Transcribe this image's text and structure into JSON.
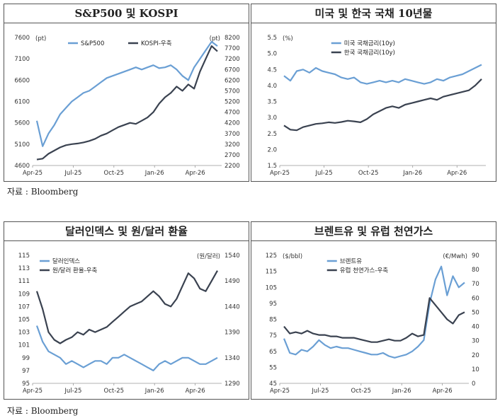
{
  "source_top": "자료 : Bloomberg",
  "source_bottom": "자료 : Bloomberg",
  "chart_data": [
    {
      "id": "spx-kospi",
      "type": "line",
      "title": "S&P500 및 KOSPI",
      "x_ticks": [
        "Apr-25",
        "Jul-25",
        "Oct-25",
        "Jan-26",
        "Apr-26"
      ],
      "left_unit": "(pt)",
      "right_unit": "(pt)",
      "ylim_left": [
        4600,
        7600
      ],
      "yticks_left": [
        4600,
        5100,
        5600,
        6100,
        6600,
        7100,
        7600
      ],
      "ylim_right": [
        2200,
        8200
      ],
      "yticks_right": [
        2200,
        2700,
        3200,
        3700,
        4200,
        4700,
        5200,
        5700,
        6200,
        6700,
        7200,
        7700,
        8200
      ],
      "legend_position": "top",
      "series": [
        {
          "name": "S&P500",
          "axis": "left",
          "color": "#6a9fd4",
          "values": [
            5650,
            5050,
            5350,
            5550,
            5800,
            5950,
            6100,
            6200,
            6300,
            6350,
            6450,
            6550,
            6650,
            6700,
            6750,
            6800,
            6850,
            6900,
            6850,
            6900,
            6950,
            6880,
            6900,
            6950,
            6850,
            6700,
            6600,
            6900,
            7100,
            7300,
            7500,
            7400
          ]
        },
        {
          "name": "KOSPI-우축",
          "axis": "right",
          "color": "#3a4250",
          "values": [
            2480,
            2520,
            2750,
            2900,
            3050,
            3150,
            3200,
            3230,
            3280,
            3350,
            3450,
            3600,
            3700,
            3850,
            4000,
            4100,
            4200,
            4150,
            4300,
            4450,
            4700,
            5100,
            5400,
            5600,
            5900,
            5700,
            6000,
            5800,
            6600,
            7200,
            7800,
            7550
          ]
        }
      ]
    },
    {
      "id": "us-kr-10y",
      "type": "line",
      "title": "미국 및 한국 국채 10년물",
      "x_ticks": [
        "Apr-25",
        "Jul-25",
        "Oct-25",
        "Jan-26",
        "Apr-26"
      ],
      "left_unit": "(%)",
      "ylim_left": [
        1.5,
        5.5
      ],
      "yticks_left": [
        1.5,
        2.0,
        2.5,
        3.0,
        3.5,
        4.0,
        4.5,
        5.0,
        5.5
      ],
      "legend_position": "top",
      "series": [
        {
          "name": "미국 국채금리(10y)",
          "axis": "left",
          "color": "#6a9fd4",
          "values": [
            4.3,
            4.15,
            4.45,
            4.5,
            4.4,
            4.55,
            4.45,
            4.4,
            4.35,
            4.25,
            4.2,
            4.25,
            4.1,
            4.05,
            4.1,
            4.15,
            4.1,
            4.15,
            4.1,
            4.2,
            4.15,
            4.1,
            4.05,
            4.1,
            4.2,
            4.15,
            4.25,
            4.3,
            4.35,
            4.45,
            4.55,
            4.65
          ]
        },
        {
          "name": "한국 국채금리(10y)",
          "axis": "left",
          "color": "#3a4250",
          "values": [
            2.75,
            2.62,
            2.6,
            2.7,
            2.75,
            2.8,
            2.82,
            2.85,
            2.83,
            2.86,
            2.9,
            2.88,
            2.85,
            2.95,
            3.1,
            3.2,
            3.3,
            3.35,
            3.3,
            3.4,
            3.45,
            3.5,
            3.55,
            3.6,
            3.55,
            3.65,
            3.7,
            3.75,
            3.8,
            3.85,
            4.0,
            4.2
          ]
        }
      ]
    },
    {
      "id": "dxy-krw",
      "type": "line",
      "title": "달러인덱스 및 원/달러 환율",
      "x_ticks": [
        "Apr-25",
        "Jul-25",
        "Oct-25",
        "Jan-26",
        "Apr-26"
      ],
      "right_unit": "(원/달러)",
      "ylim_left": [
        95,
        115
      ],
      "yticks_left": [
        95,
        97,
        99,
        101,
        103,
        105,
        107,
        109,
        111,
        113,
        115
      ],
      "ylim_right": [
        1290,
        1540
      ],
      "yticks_right": [
        1290,
        1340,
        1390,
        1440,
        1490,
        1540
      ],
      "legend_position": "top-left",
      "series": [
        {
          "name": "달러인덱스",
          "axis": "left",
          "color": "#6a9fd4",
          "values": [
            104,
            101.5,
            100,
            99.5,
            99,
            98,
            98.5,
            98,
            97.5,
            98,
            98.5,
            98.5,
            98,
            99,
            99,
            99.5,
            99,
            98.5,
            98,
            97.5,
            97,
            98,
            98.5,
            98,
            98.5,
            99,
            99,
            98.5,
            98,
            98,
            98.5,
            99
          ]
        },
        {
          "name": "원/달러 환율-우축",
          "axis": "right",
          "color": "#3a4250",
          "values": [
            1470,
            1435,
            1390,
            1375,
            1368,
            1375,
            1380,
            1390,
            1385,
            1395,
            1390,
            1395,
            1400,
            1410,
            1420,
            1430,
            1440,
            1445,
            1450,
            1460,
            1470,
            1460,
            1445,
            1440,
            1455,
            1480,
            1505,
            1495,
            1475,
            1470,
            1490,
            1510
          ]
        }
      ]
    },
    {
      "id": "brent-ttf",
      "type": "line",
      "title": "브렌트유 및 유럽 천연가스",
      "x_ticks": [
        "Apr-25",
        "Jul-25",
        "Oct-25",
        "Jan-26",
        "Apr-26"
      ],
      "left_unit": "($/bbl)",
      "right_unit": "(€/Mwh)",
      "ylim_left": [
        45,
        125
      ],
      "yticks_left": [
        45,
        55,
        65,
        75,
        85,
        95,
        105,
        115,
        125
      ],
      "ylim_right": [
        0,
        90
      ],
      "yticks_right": [
        0,
        10,
        20,
        30,
        40,
        50,
        60,
        70,
        80,
        90
      ],
      "legend_position": "top",
      "series": [
        {
          "name": "브렌트유",
          "axis": "left",
          "color": "#6a9fd4",
          "values": [
            73,
            64,
            63,
            66,
            65,
            68,
            72,
            69,
            67,
            68,
            67,
            67,
            66,
            65,
            64,
            63,
            63,
            64,
            62,
            61,
            62,
            63,
            65,
            68,
            72,
            95,
            110,
            118,
            100,
            112,
            105,
            108
          ]
        },
        {
          "name": "유럽 천연가스-우축",
          "axis": "right",
          "color": "#3a4250",
          "values": [
            40,
            35,
            36,
            35,
            37,
            35,
            34,
            34,
            33,
            33,
            32,
            32,
            32,
            31,
            30,
            29,
            29,
            30,
            31,
            30,
            30,
            32,
            35,
            33,
            34,
            60,
            55,
            50,
            45,
            42,
            48,
            50
          ]
        }
      ]
    }
  ]
}
